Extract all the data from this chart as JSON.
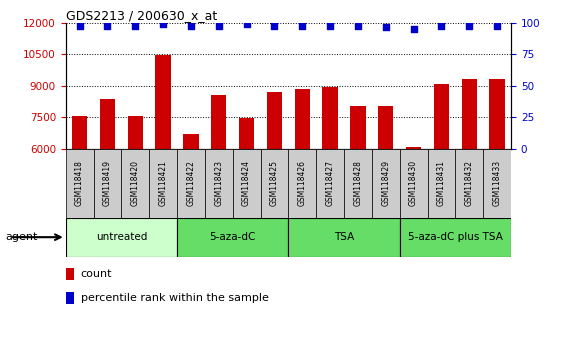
{
  "title": "GDS2213 / 200630_x_at",
  "samples": [
    "GSM118418",
    "GSM118419",
    "GSM118420",
    "GSM118421",
    "GSM118422",
    "GSM118423",
    "GSM118424",
    "GSM118425",
    "GSM118426",
    "GSM118427",
    "GSM118428",
    "GSM118429",
    "GSM118430",
    "GSM118431",
    "GSM118432",
    "GSM118433"
  ],
  "counts": [
    7550,
    8350,
    7550,
    10450,
    6700,
    8550,
    7450,
    8700,
    8850,
    8950,
    8050,
    8050,
    6100,
    9100,
    9350,
    9350
  ],
  "percentile_ranks": [
    98,
    98,
    98,
    99,
    98,
    98,
    99,
    98,
    98,
    98,
    98,
    97,
    95,
    98,
    98,
    98
  ],
  "bar_color": "#cc0000",
  "dot_color": "#0000cc",
  "ylim_left": [
    6000,
    12000
  ],
  "ylim_right": [
    0,
    100
  ],
  "yticks_left": [
    6000,
    7500,
    9000,
    10500,
    12000
  ],
  "yticks_right": [
    0,
    25,
    50,
    75,
    100
  ],
  "groups": [
    {
      "label": "untreated",
      "start": 0,
      "end": 3,
      "color": "#ccffcc"
    },
    {
      "label": "5-aza-dC",
      "start": 4,
      "end": 7,
      "color": "#66dd66"
    },
    {
      "label": "TSA",
      "start": 8,
      "end": 11,
      "color": "#66dd66"
    },
    {
      "label": "5-aza-dC plus TSA",
      "start": 12,
      "end": 15,
      "color": "#66dd66"
    }
  ],
  "agent_label": "agent",
  "legend_count_label": "count",
  "legend_pct_label": "percentile rank within the sample",
  "left_label_color": "#cc0000",
  "right_label_color": "#0000cc",
  "tick_bg_color": "#cccccc",
  "grid_linestyle": "dotted"
}
